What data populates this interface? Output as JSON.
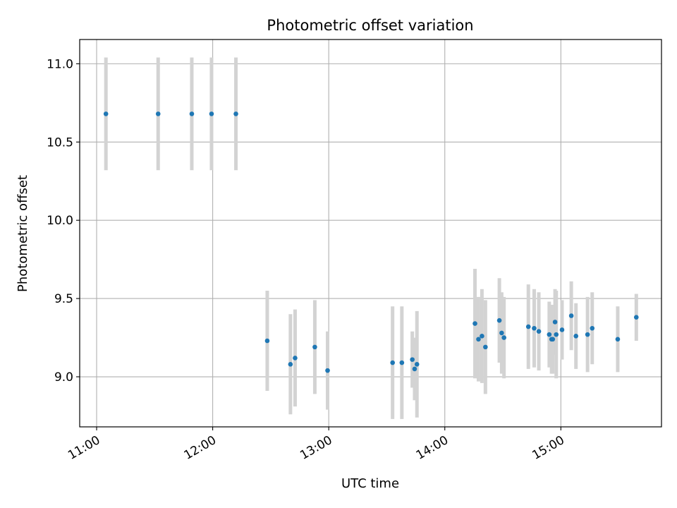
{
  "chart_data": {
    "type": "scatter",
    "title": "Photometric offset variation",
    "xlabel": "UTC time",
    "ylabel": "Photometric offset",
    "x_ticks": [
      "11:00",
      "12:00",
      "13:00",
      "14:00",
      "15:00"
    ],
    "x_tick_hours": [
      11,
      12,
      13,
      14,
      15
    ],
    "y_ticks": [
      9.0,
      9.5,
      10.0,
      10.5,
      11.0
    ],
    "y_tick_labels": [
      "9.0",
      "9.5",
      "10.0",
      "10.5",
      "11.0"
    ],
    "xlim_hours": [
      10.854,
      15.867
    ],
    "ylim": [
      8.68,
      11.155
    ],
    "grid": true,
    "colors": {
      "points": "#1f77b4",
      "errorbars": "#d3d3d3",
      "grid": "#b0b0b0"
    },
    "points": [
      {
        "t": 11.08,
        "y": 10.68,
        "err": 0.36
      },
      {
        "t": 11.53,
        "y": 10.68,
        "err": 0.36
      },
      {
        "t": 11.82,
        "y": 10.68,
        "err": 0.36
      },
      {
        "t": 11.99,
        "y": 10.68,
        "err": 0.36
      },
      {
        "t": 12.2,
        "y": 10.68,
        "err": 0.36
      },
      {
        "t": 12.47,
        "y": 9.23,
        "err": 0.32
      },
      {
        "t": 12.67,
        "y": 9.08,
        "err": 0.32
      },
      {
        "t": 12.71,
        "y": 9.12,
        "err": 0.31
      },
      {
        "t": 12.88,
        "y": 9.19,
        "err": 0.3
      },
      {
        "t": 12.99,
        "y": 9.04,
        "err": 0.25
      },
      {
        "t": 13.55,
        "y": 9.09,
        "err": 0.36
      },
      {
        "t": 13.63,
        "y": 9.09,
        "err": 0.36
      },
      {
        "t": 13.72,
        "y": 9.11,
        "err": 0.18
      },
      {
        "t": 13.74,
        "y": 9.05,
        "err": 0.2
      },
      {
        "t": 13.76,
        "y": 9.08,
        "err": 0.34
      },
      {
        "t": 14.26,
        "y": 9.34,
        "err": 0.35
      },
      {
        "t": 14.29,
        "y": 9.24,
        "err": 0.27
      },
      {
        "t": 14.32,
        "y": 9.26,
        "err": 0.3
      },
      {
        "t": 14.35,
        "y": 9.19,
        "err": 0.3
      },
      {
        "t": 14.47,
        "y": 9.36,
        "err": 0.27
      },
      {
        "t": 14.49,
        "y": 9.28,
        "err": 0.26
      },
      {
        "t": 14.51,
        "y": 9.25,
        "err": 0.26
      },
      {
        "t": 14.72,
        "y": 9.32,
        "err": 0.27
      },
      {
        "t": 14.77,
        "y": 9.31,
        "err": 0.25
      },
      {
        "t": 14.81,
        "y": 9.29,
        "err": 0.25
      },
      {
        "t": 14.9,
        "y": 9.27,
        "err": 0.21
      },
      {
        "t": 14.92,
        "y": 9.24,
        "err": 0.22
      },
      {
        "t": 14.93,
        "y": 9.24,
        "err": 0.22
      },
      {
        "t": 14.95,
        "y": 9.35,
        "err": 0.21
      },
      {
        "t": 14.96,
        "y": 9.27,
        "err": 0.28
      },
      {
        "t": 15.01,
        "y": 9.3,
        "err": 0.19
      },
      {
        "t": 15.09,
        "y": 9.39,
        "err": 0.22
      },
      {
        "t": 15.13,
        "y": 9.26,
        "err": 0.21
      },
      {
        "t": 15.23,
        "y": 9.27,
        "err": 0.24
      },
      {
        "t": 15.27,
        "y": 9.31,
        "err": 0.23
      },
      {
        "t": 15.49,
        "y": 9.24,
        "err": 0.21
      },
      {
        "t": 15.65,
        "y": 9.38,
        "err": 0.15
      }
    ]
  }
}
